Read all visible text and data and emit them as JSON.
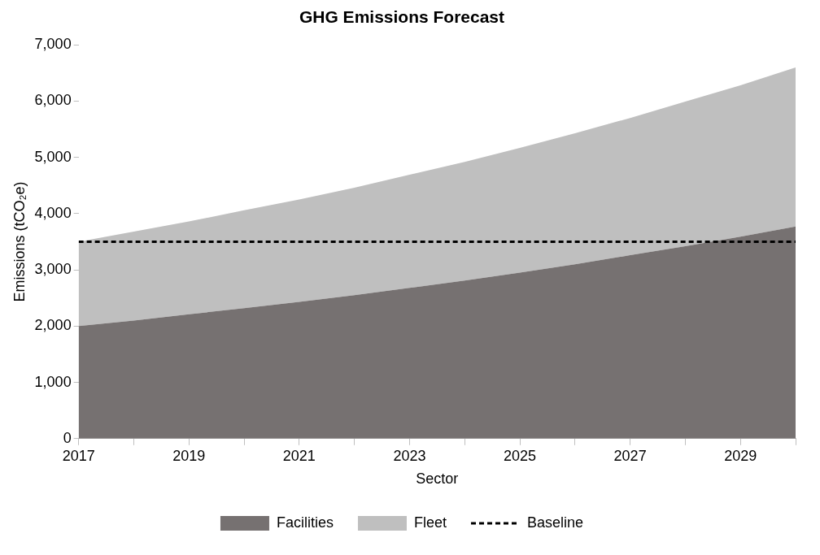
{
  "chart_data": {
    "type": "area",
    "title": "GHG Emissions Forecast",
    "xlabel": "Sector",
    "ylabel": "Emissions (tCO₂e)",
    "stacked": true,
    "x": [
      2017,
      2018,
      2019,
      2020,
      2021,
      2022,
      2023,
      2024,
      2025,
      2026,
      2027,
      2028,
      2029,
      2030
    ],
    "series": [
      {
        "name": "Facilities",
        "color": "#767171",
        "values": [
          2000,
          2100,
          2210,
          2320,
          2430,
          2550,
          2680,
          2810,
          2950,
          3100,
          3260,
          3420,
          3590,
          3770
        ]
      },
      {
        "name": "Fleet",
        "color": "#bfbfbf",
        "values": [
          1500,
          1580,
          1650,
          1740,
          1820,
          1910,
          2010,
          2110,
          2220,
          2330,
          2440,
          2570,
          2690,
          2830
        ]
      }
    ],
    "ref_lines": [
      {
        "axis": "y",
        "value": 3500,
        "label": "Baseline",
        "color": "#000000",
        "line_style": "dashed"
      }
    ],
    "xlim": [
      2017,
      2030
    ],
    "xticks": [
      2017,
      {
        "value": 2018,
        "label": null
      },
      2019,
      {
        "value": 2020,
        "label": null
      },
      2021,
      {
        "value": 2022,
        "label": null
      },
      2023,
      {
        "value": 2024,
        "label": null
      },
      2025,
      {
        "value": 2026,
        "label": null
      },
      2027,
      {
        "value": 2028,
        "label": null
      },
      2029,
      {
        "value": 2030,
        "label": null
      }
    ],
    "ylim": [
      0,
      7000
    ],
    "yticks": [
      0,
      {
        "value": 1000,
        "label": "1,000"
      },
      {
        "value": 2000,
        "label": "2,000"
      },
      {
        "value": 3000,
        "label": "3,000"
      },
      {
        "value": 4000,
        "label": "4,000"
      },
      {
        "value": 5000,
        "label": "5,000"
      },
      {
        "value": 6000,
        "label": "6,000"
      },
      {
        "value": 7000,
        "label": "7,000"
      }
    ],
    "grid": false,
    "legend": "bottom"
  }
}
